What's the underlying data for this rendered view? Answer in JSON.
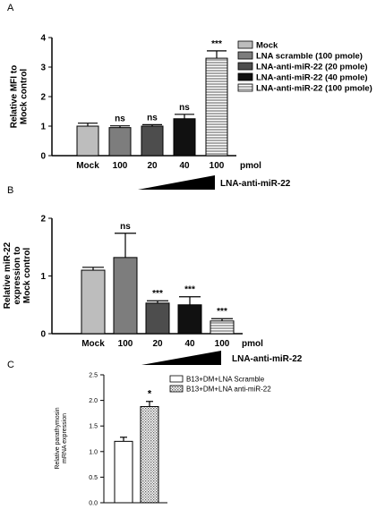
{
  "panel_letters": [
    "A",
    "B",
    "C"
  ],
  "chart_data": [
    {
      "type": "bar",
      "panel": "A",
      "ylabel": [
        "Relative MFI to",
        "Mock control"
      ],
      "ylim": [
        0,
        4
      ],
      "yticks": [
        "0",
        "1",
        "2",
        "3",
        "4"
      ],
      "categories": [
        "Mock",
        "100",
        "20",
        "40",
        "100"
      ],
      "x_unit": "pmol",
      "values": [
        1.0,
        0.95,
        1.0,
        1.25,
        3.3
      ],
      "errors": [
        0.1,
        0.06,
        0.05,
        0.15,
        0.25
      ],
      "significance": [
        "",
        "ns",
        "ns",
        "ns",
        "***"
      ],
      "fills": [
        "#bdbdbd",
        "#7d7d7d",
        "#4d4d4d",
        "#111111",
        "stripes"
      ],
      "legend": [
        "Mock",
        "LNA scramble (100 pmole)",
        "LNA-anti-miR-22 (20 pmole)",
        "LNA-anti-miR-22 (40 pmole)",
        "LNA-anti-miR-22 (100 pmole)"
      ],
      "ramp_label": "LNA-anti-miR-22",
      "grid": false,
      "legend_position": "top-right"
    },
    {
      "type": "bar",
      "panel": "B",
      "ylabel": [
        "Relative miR-22",
        "expression to",
        "Mock control"
      ],
      "ylim": [
        0,
        2
      ],
      "yticks": [
        "0",
        "1",
        "2"
      ],
      "categories": [
        "Mock",
        "100",
        "20",
        "40",
        "100"
      ],
      "x_unit": "pmol",
      "values": [
        1.1,
        1.32,
        0.53,
        0.5,
        0.22
      ],
      "errors": [
        0.05,
        0.42,
        0.04,
        0.14,
        0.04
      ],
      "significance": [
        "",
        "ns",
        "***",
        "***",
        "***"
      ],
      "fills": [
        "#bdbdbd",
        "#7d7d7d",
        "#4d4d4d",
        "#111111",
        "stripes"
      ],
      "ramp_label": "LNA-anti-miR-22",
      "grid": false
    },
    {
      "type": "bar",
      "panel": "C",
      "ylabel": [
        "Relative parathymosin",
        "mRNA expression"
      ],
      "ylim": [
        0,
        2.5
      ],
      "yticks": [
        "0.0",
        "0.5",
        "1.0",
        "1.5",
        "2.0",
        "2.5"
      ],
      "values": [
        1.2,
        1.88
      ],
      "errors": [
        0.08,
        0.1
      ],
      "significance": [
        "",
        "*"
      ],
      "fills": [
        "#ffffff",
        "dots"
      ],
      "legend": [
        "B13+DM+LNA Scramble",
        "B13+DM+LNA anti-miR-22"
      ],
      "grid": false,
      "legend_position": "top-right"
    }
  ]
}
